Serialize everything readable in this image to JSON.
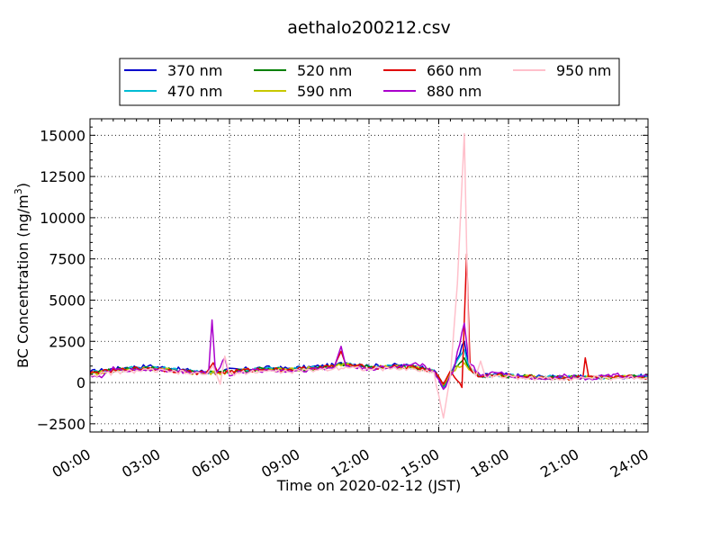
{
  "chart_data": {
    "type": "line",
    "title": "aethalo200212.csv",
    "xlabel": "Time on 2020-02-12 (JST)",
    "ylabel": "BC Concentration (ng/m",
    "ylabel_sup": "3",
    "ylabel_end": ")",
    "xlim": [
      0,
      24
    ],
    "ylim": [
      -3000,
      16000
    ],
    "xticks": [
      0,
      3,
      6,
      9,
      12,
      15,
      18,
      21,
      24
    ],
    "xtick_labels": [
      "00:00",
      "03:00",
      "06:00",
      "09:00",
      "12:00",
      "15:00",
      "18:00",
      "21:00",
      "24:00"
    ],
    "yticks": [
      -2500,
      0,
      2500,
      5000,
      7500,
      10000,
      12500,
      15000
    ],
    "ytick_labels": [
      "−2500",
      "0",
      "2500",
      "5000",
      "7500",
      "10000",
      "12500",
      "15000"
    ],
    "grid": true,
    "legend_position": "top",
    "series": [
      {
        "name": "370 nm",
        "color": "#0000cc",
        "key": [
          [
            0,
            650
          ],
          [
            1.5,
            900
          ],
          [
            2.5,
            1000
          ],
          [
            3.5,
            850
          ],
          [
            4.5,
            700
          ],
          [
            5,
            650
          ],
          [
            5.5,
            700
          ],
          [
            6.5,
            800
          ],
          [
            7.5,
            900
          ],
          [
            8.5,
            850
          ],
          [
            9.5,
            950
          ],
          [
            10.5,
            1050
          ],
          [
            11,
            1200
          ],
          [
            12,
            1000
          ],
          [
            13,
            1050
          ],
          [
            14,
            1000
          ],
          [
            14.8,
            750
          ],
          [
            15.2,
            -400
          ],
          [
            15.6,
            800
          ],
          [
            16.1,
            2500
          ],
          [
            16.3,
            900
          ],
          [
            16.8,
            400
          ],
          [
            17.5,
            500
          ],
          [
            18.5,
            400
          ],
          [
            19.5,
            350
          ],
          [
            20.5,
            300
          ],
          [
            21.5,
            350
          ],
          [
            22.5,
            300
          ],
          [
            23.5,
            400
          ],
          [
            24,
            350
          ]
        ]
      },
      {
        "name": "470 nm",
        "color": "#00bcd4",
        "key": [
          [
            0,
            600
          ],
          [
            1.5,
            850
          ],
          [
            2.5,
            950
          ],
          [
            3.5,
            800
          ],
          [
            4.5,
            650
          ],
          [
            5,
            620
          ],
          [
            5.5,
            650
          ],
          [
            6.5,
            750
          ],
          [
            7.5,
            850
          ],
          [
            8.5,
            800
          ],
          [
            9.5,
            900
          ],
          [
            10.5,
            1000
          ],
          [
            11,
            1150
          ],
          [
            12,
            950
          ],
          [
            13,
            1000
          ],
          [
            14,
            950
          ],
          [
            14.8,
            700
          ],
          [
            15.2,
            -300
          ],
          [
            15.6,
            750
          ],
          [
            16.1,
            2000
          ],
          [
            16.3,
            850
          ],
          [
            16.8,
            380
          ],
          [
            17.5,
            480
          ],
          [
            18.5,
            380
          ],
          [
            19.5,
            330
          ],
          [
            20.5,
            290
          ],
          [
            21.5,
            330
          ],
          [
            22.5,
            290
          ],
          [
            23.5,
            380
          ],
          [
            24,
            330
          ]
        ]
      },
      {
        "name": "520 nm",
        "color": "#008000",
        "key": [
          [
            0,
            580
          ],
          [
            1.5,
            800
          ],
          [
            2.5,
            900
          ],
          [
            3.5,
            760
          ],
          [
            4.5,
            620
          ],
          [
            5,
            600
          ],
          [
            5.5,
            620
          ],
          [
            6.5,
            720
          ],
          [
            7.5,
            820
          ],
          [
            8.5,
            780
          ],
          [
            9.5,
            870
          ],
          [
            10.5,
            980
          ],
          [
            11,
            1100
          ],
          [
            12,
            920
          ],
          [
            13,
            970
          ],
          [
            14,
            920
          ],
          [
            14.8,
            680
          ],
          [
            15.2,
            -200
          ],
          [
            15.6,
            700
          ],
          [
            16.1,
            1500
          ],
          [
            16.3,
            800
          ],
          [
            16.8,
            360
          ],
          [
            17.5,
            460
          ],
          [
            18.5,
            360
          ],
          [
            19.5,
            320
          ],
          [
            20.5,
            280
          ],
          [
            21.5,
            320
          ],
          [
            22.5,
            280
          ],
          [
            23.5,
            360
          ],
          [
            24,
            320
          ]
        ]
      },
      {
        "name": "590 nm",
        "color": "#c8c800",
        "key": [
          [
            0,
            550
          ],
          [
            1.5,
            760
          ],
          [
            2.5,
            860
          ],
          [
            3.5,
            730
          ],
          [
            4.5,
            600
          ],
          [
            5,
            580
          ],
          [
            5.5,
            600
          ],
          [
            6.5,
            700
          ],
          [
            7.5,
            800
          ],
          [
            8.5,
            760
          ],
          [
            9.5,
            850
          ],
          [
            10.5,
            960
          ],
          [
            11,
            1080
          ],
          [
            12,
            900
          ],
          [
            13,
            950
          ],
          [
            14,
            900
          ],
          [
            14.8,
            660
          ],
          [
            15.2,
            -150
          ],
          [
            15.6,
            680
          ],
          [
            16.1,
            1200
          ],
          [
            16.3,
            780
          ],
          [
            16.8,
            350
          ],
          [
            17.5,
            450
          ],
          [
            18.5,
            350
          ],
          [
            19.5,
            310
          ],
          [
            20.5,
            270
          ],
          [
            21.5,
            310
          ],
          [
            22.5,
            270
          ],
          [
            23.5,
            350
          ],
          [
            24,
            310
          ]
        ]
      },
      {
        "name": "660 nm",
        "color": "#e00000",
        "key": [
          [
            0,
            560
          ],
          [
            1.5,
            780
          ],
          [
            2.5,
            880
          ],
          [
            3.5,
            740
          ],
          [
            4.5,
            610
          ],
          [
            5,
            590
          ],
          [
            5.3,
            1200
          ],
          [
            5.5,
            610
          ],
          [
            6.5,
            710
          ],
          [
            7.5,
            810
          ],
          [
            8.5,
            770
          ],
          [
            9.5,
            860
          ],
          [
            10.5,
            970
          ],
          [
            10.8,
            1900
          ],
          [
            11,
            1090
          ],
          [
            12,
            910
          ],
          [
            13,
            960
          ],
          [
            14,
            910
          ],
          [
            14.8,
            670
          ],
          [
            15.2,
            -100
          ],
          [
            15.5,
            700
          ],
          [
            16,
            -300
          ],
          [
            16.2,
            7800
          ],
          [
            16.35,
            800
          ],
          [
            16.8,
            350
          ],
          [
            17.5,
            450
          ],
          [
            18.5,
            350
          ],
          [
            19.5,
            310
          ],
          [
            20.5,
            270
          ],
          [
            21.2,
            300
          ],
          [
            21.3,
            1500
          ],
          [
            21.45,
            350
          ],
          [
            22.5,
            270
          ],
          [
            23.5,
            350
          ],
          [
            24,
            310
          ]
        ]
      },
      {
        "name": "880 nm",
        "color": "#aa00cc",
        "key": [
          [
            0,
            500
          ],
          [
            0.5,
            300
          ],
          [
            1,
            950
          ],
          [
            1.5,
            700
          ],
          [
            2.5,
            800
          ],
          [
            3.5,
            700
          ],
          [
            4.5,
            650
          ],
          [
            5.1,
            600
          ],
          [
            5.25,
            3800
          ],
          [
            5.4,
            500
          ],
          [
            5.8,
            1500
          ],
          [
            6,
            400
          ],
          [
            6.5,
            650
          ],
          [
            7.5,
            750
          ],
          [
            8.5,
            700
          ],
          [
            9.5,
            800
          ],
          [
            10.5,
            900
          ],
          [
            10.8,
            2200
          ],
          [
            11,
            1000
          ],
          [
            12,
            850
          ],
          [
            13,
            900
          ],
          [
            14,
            1200
          ],
          [
            14.8,
            700
          ],
          [
            15.2,
            -400
          ],
          [
            15.6,
            600
          ],
          [
            16.1,
            3600
          ],
          [
            16.3,
            1200
          ],
          [
            16.8,
            400
          ],
          [
            17.5,
            600
          ],
          [
            18.5,
            350
          ],
          [
            19.5,
            200
          ],
          [
            20.5,
            400
          ],
          [
            21.5,
            250
          ],
          [
            22.5,
            500
          ],
          [
            23.5,
            300
          ],
          [
            24,
            400
          ]
        ]
      },
      {
        "name": "950 nm",
        "color": "#ffc0cb",
        "key": [
          [
            0,
            450
          ],
          [
            1.5,
            650
          ],
          [
            2.5,
            750
          ],
          [
            3.5,
            650
          ],
          [
            4.5,
            550
          ],
          [
            5,
            500
          ],
          [
            5.3,
            1000
          ],
          [
            5.6,
            -100
          ],
          [
            5.8,
            1600
          ],
          [
            6,
            500
          ],
          [
            6.5,
            600
          ],
          [
            7.5,
            700
          ],
          [
            8.5,
            650
          ],
          [
            9.5,
            750
          ],
          [
            10.5,
            850
          ],
          [
            11,
            950
          ],
          [
            12,
            800
          ],
          [
            13,
            850
          ],
          [
            14,
            800
          ],
          [
            14.8,
            600
          ],
          [
            15.2,
            -2150
          ],
          [
            15.5,
            400
          ],
          [
            15.8,
            6000
          ],
          [
            16.1,
            15100
          ],
          [
            16.3,
            1200
          ],
          [
            16.6,
            400
          ],
          [
            16.8,
            1300
          ],
          [
            17,
            350
          ],
          [
            17.5,
            400
          ],
          [
            18.5,
            300
          ],
          [
            19.5,
            250
          ],
          [
            20.5,
            250
          ],
          [
            21.5,
            300
          ],
          [
            22.5,
            250
          ],
          [
            23.5,
            300
          ],
          [
            24,
            280
          ]
        ]
      }
    ]
  }
}
